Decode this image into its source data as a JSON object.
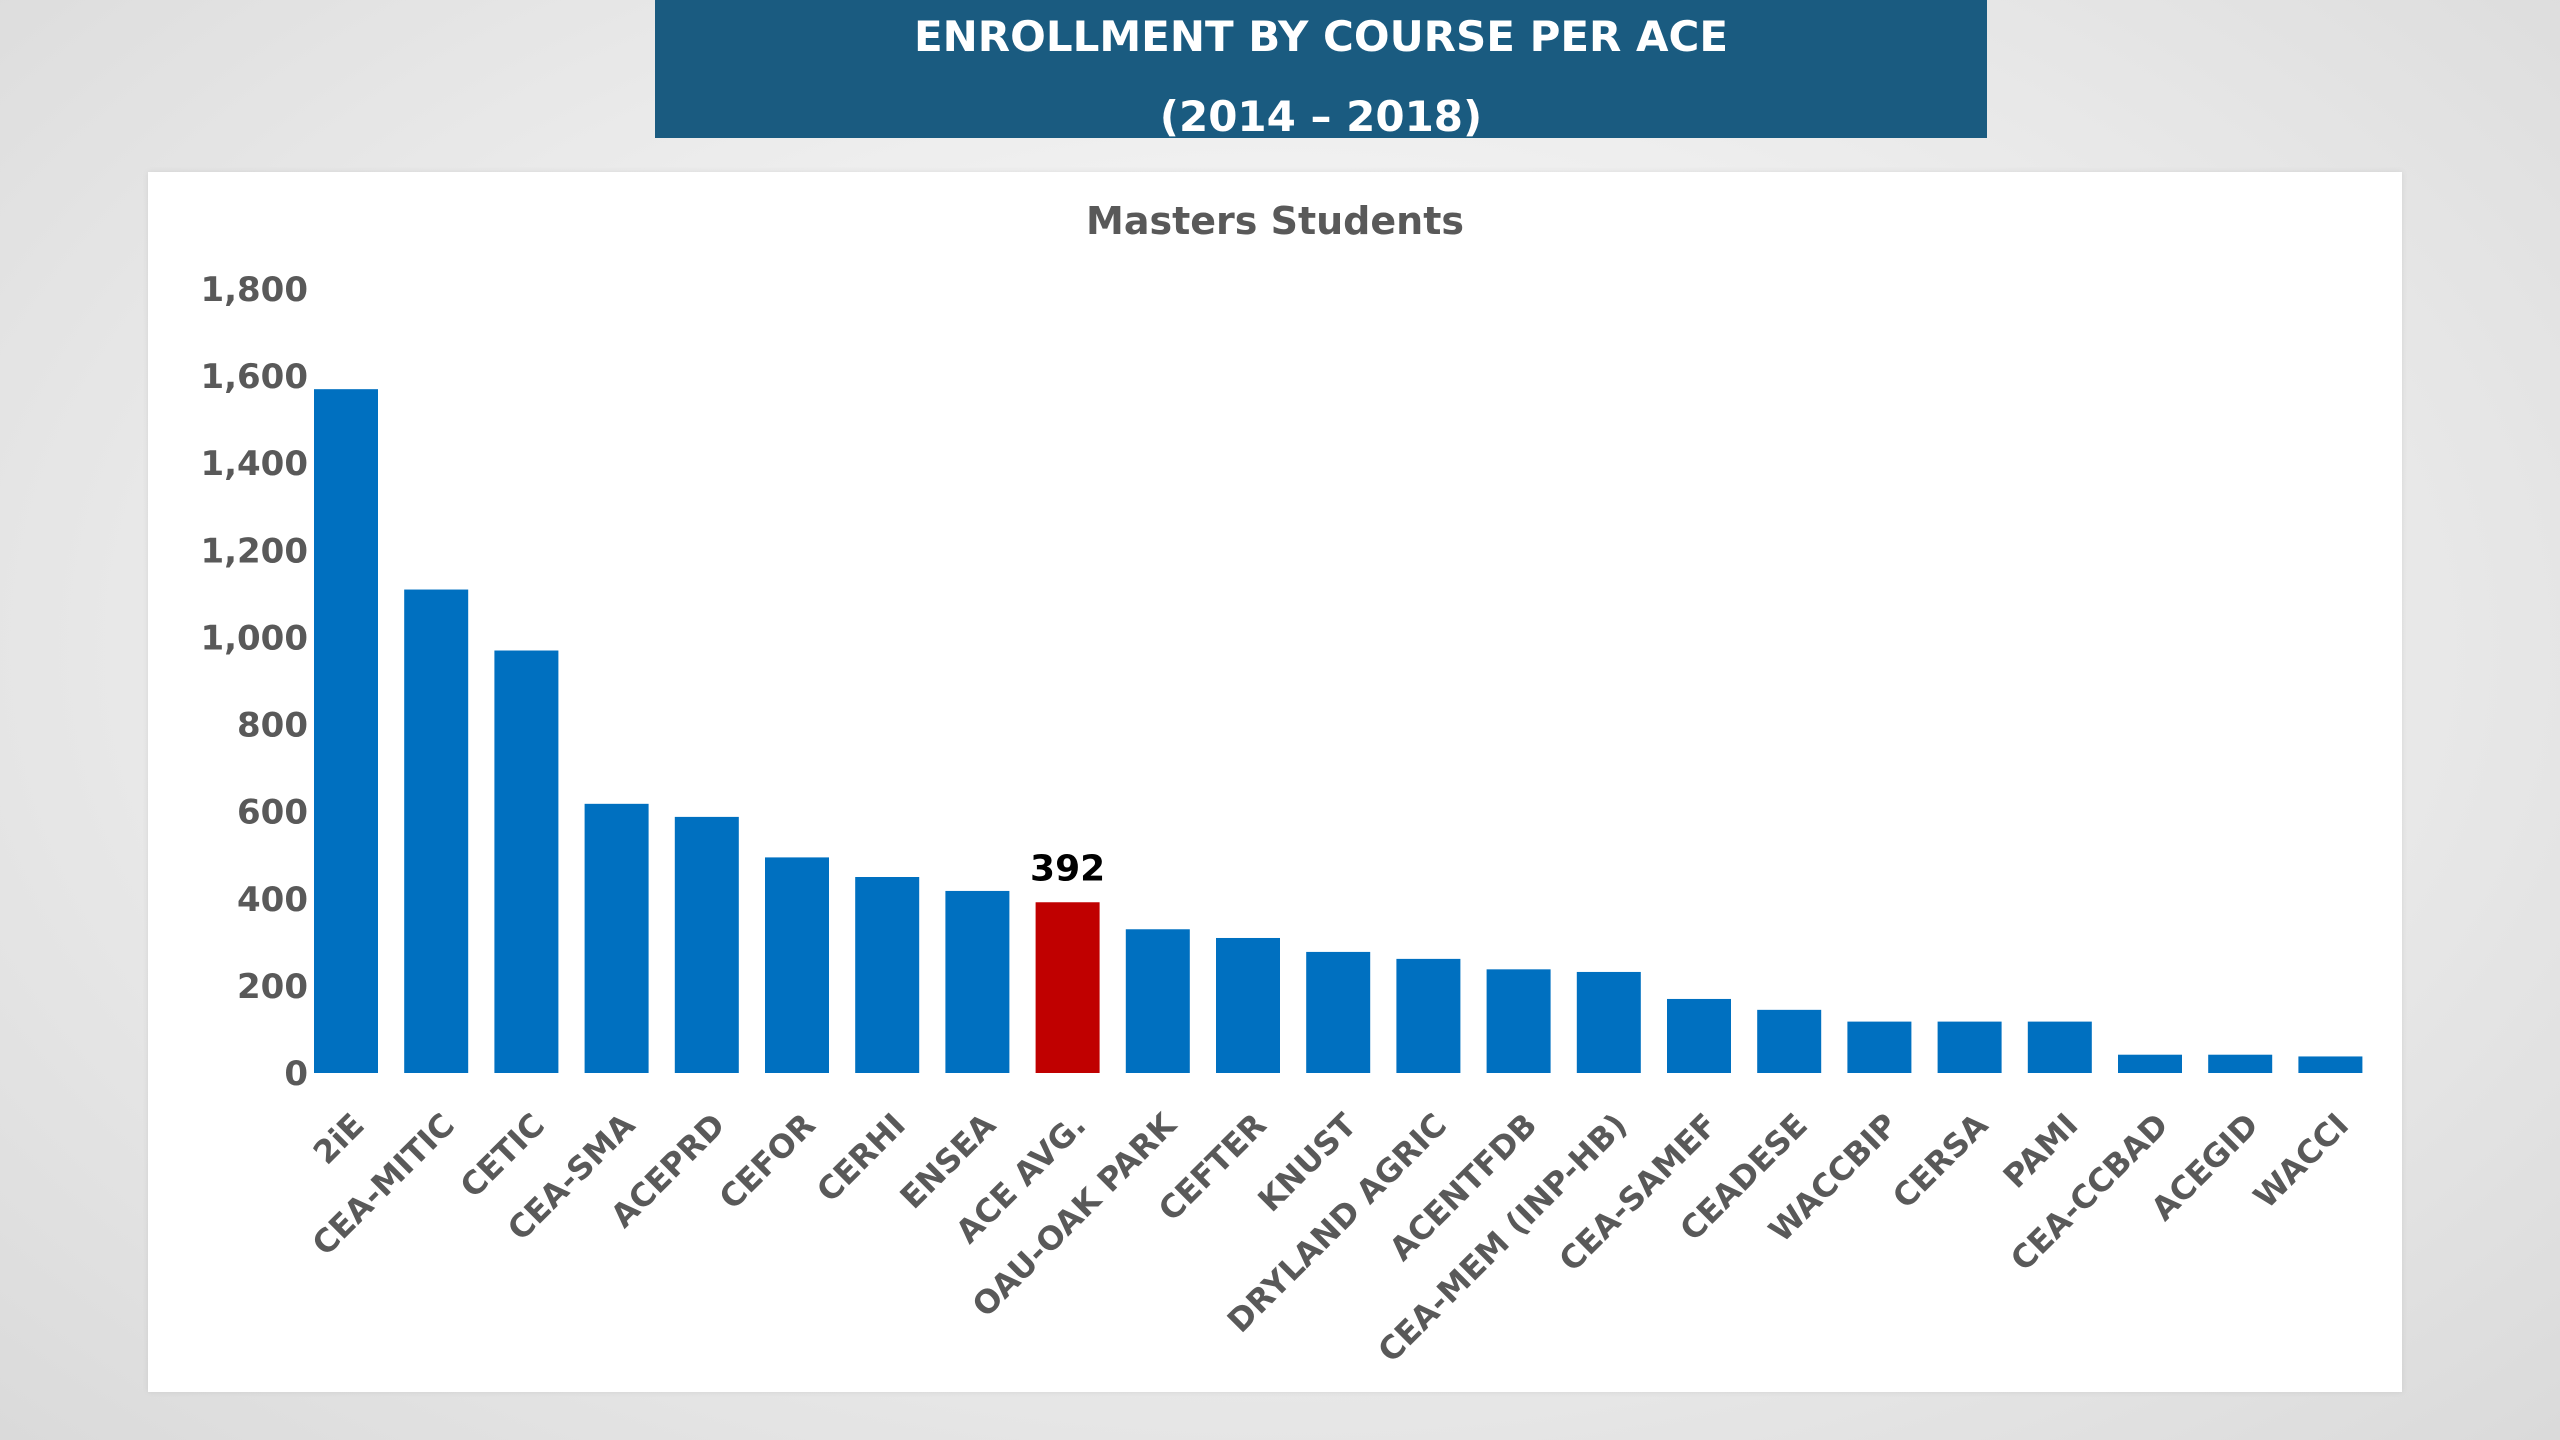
{
  "slide": {
    "title_line1": "ENROLLMENT BY COURSE PER ACE",
    "title_line2": "(2014 – 2018)"
  },
  "colors": {
    "banner": "#1a5b80",
    "bar": "#0070c0",
    "highlight_bar": "#c00000"
  },
  "chart_data": {
    "type": "bar",
    "title": "Masters Students",
    "xlabel": "",
    "ylabel": "",
    "ylim": [
      0,
      1800
    ],
    "yticks": [
      0,
      200,
      400,
      600,
      800,
      1000,
      1200,
      1400,
      1600,
      1800
    ],
    "ytick_labels": [
      "0",
      "200",
      "400",
      "600",
      "800",
      "1,000",
      "1,200",
      "1,400",
      "1,600",
      "1,800"
    ],
    "grid": false,
    "categories": [
      "2iE",
      "CEA-MITIC",
      "CETIC",
      "CEA-SMA",
      "ACEPRD",
      "CEFOR",
      "CERHI",
      "ENSEA",
      "ACE AVG.",
      "OAU-OAK PARK",
      "CEFTER",
      "KNUST",
      "DRYLAND AGRIC",
      "ACENTFDB",
      "CEA-MEM (INP-HB)",
      "CEA-SAMEF",
      "CEADESE",
      "WACCBIP",
      "CERSA",
      "PAMI",
      "CEA-CCBAD",
      "ACEGID",
      "WACCI"
    ],
    "values": [
      1570,
      1110,
      970,
      618,
      588,
      495,
      450,
      418,
      392,
      330,
      310,
      278,
      262,
      238,
      232,
      170,
      145,
      118,
      118,
      118,
      42,
      42,
      38
    ],
    "highlight_index": 8,
    "data_labels": [
      {
        "category": "ACE AVG.",
        "text": "392"
      }
    ]
  }
}
